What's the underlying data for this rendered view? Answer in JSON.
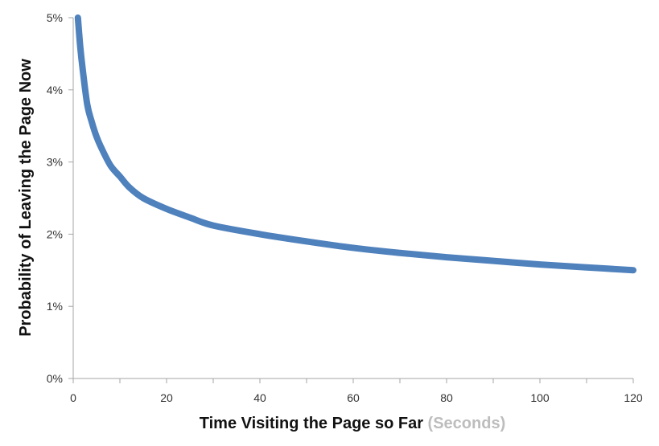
{
  "chart_data": {
    "type": "line",
    "xlabel": "Time Visiting the Page so Far",
    "xlabel_unit": "(Seconds)",
    "ylabel": "Probability of Leaving  the Page Now",
    "xlim": [
      0,
      120
    ],
    "ylim": [
      0,
      5
    ],
    "x_ticks": [
      "0",
      "20",
      "40",
      "60",
      "80",
      "100",
      "120"
    ],
    "y_ticks": [
      "0%",
      "1%",
      "2%",
      "3%",
      "4%",
      "5%"
    ],
    "grid": false,
    "line_color": "#4f81bd",
    "series": [
      {
        "x": [
          1,
          1.5,
          2,
          3,
          4,
          5,
          6,
          8,
          10,
          12,
          15,
          20,
          25,
          30,
          40,
          50,
          60,
          70,
          80,
          90,
          100,
          110,
          120
        ],
        "values": [
          5.0,
          4.6,
          4.3,
          3.8,
          3.55,
          3.35,
          3.2,
          2.95,
          2.8,
          2.65,
          2.5,
          2.35,
          2.23,
          2.12,
          2.0,
          1.9,
          1.81,
          1.74,
          1.68,
          1.63,
          1.58,
          1.54,
          1.5
        ]
      }
    ]
  }
}
